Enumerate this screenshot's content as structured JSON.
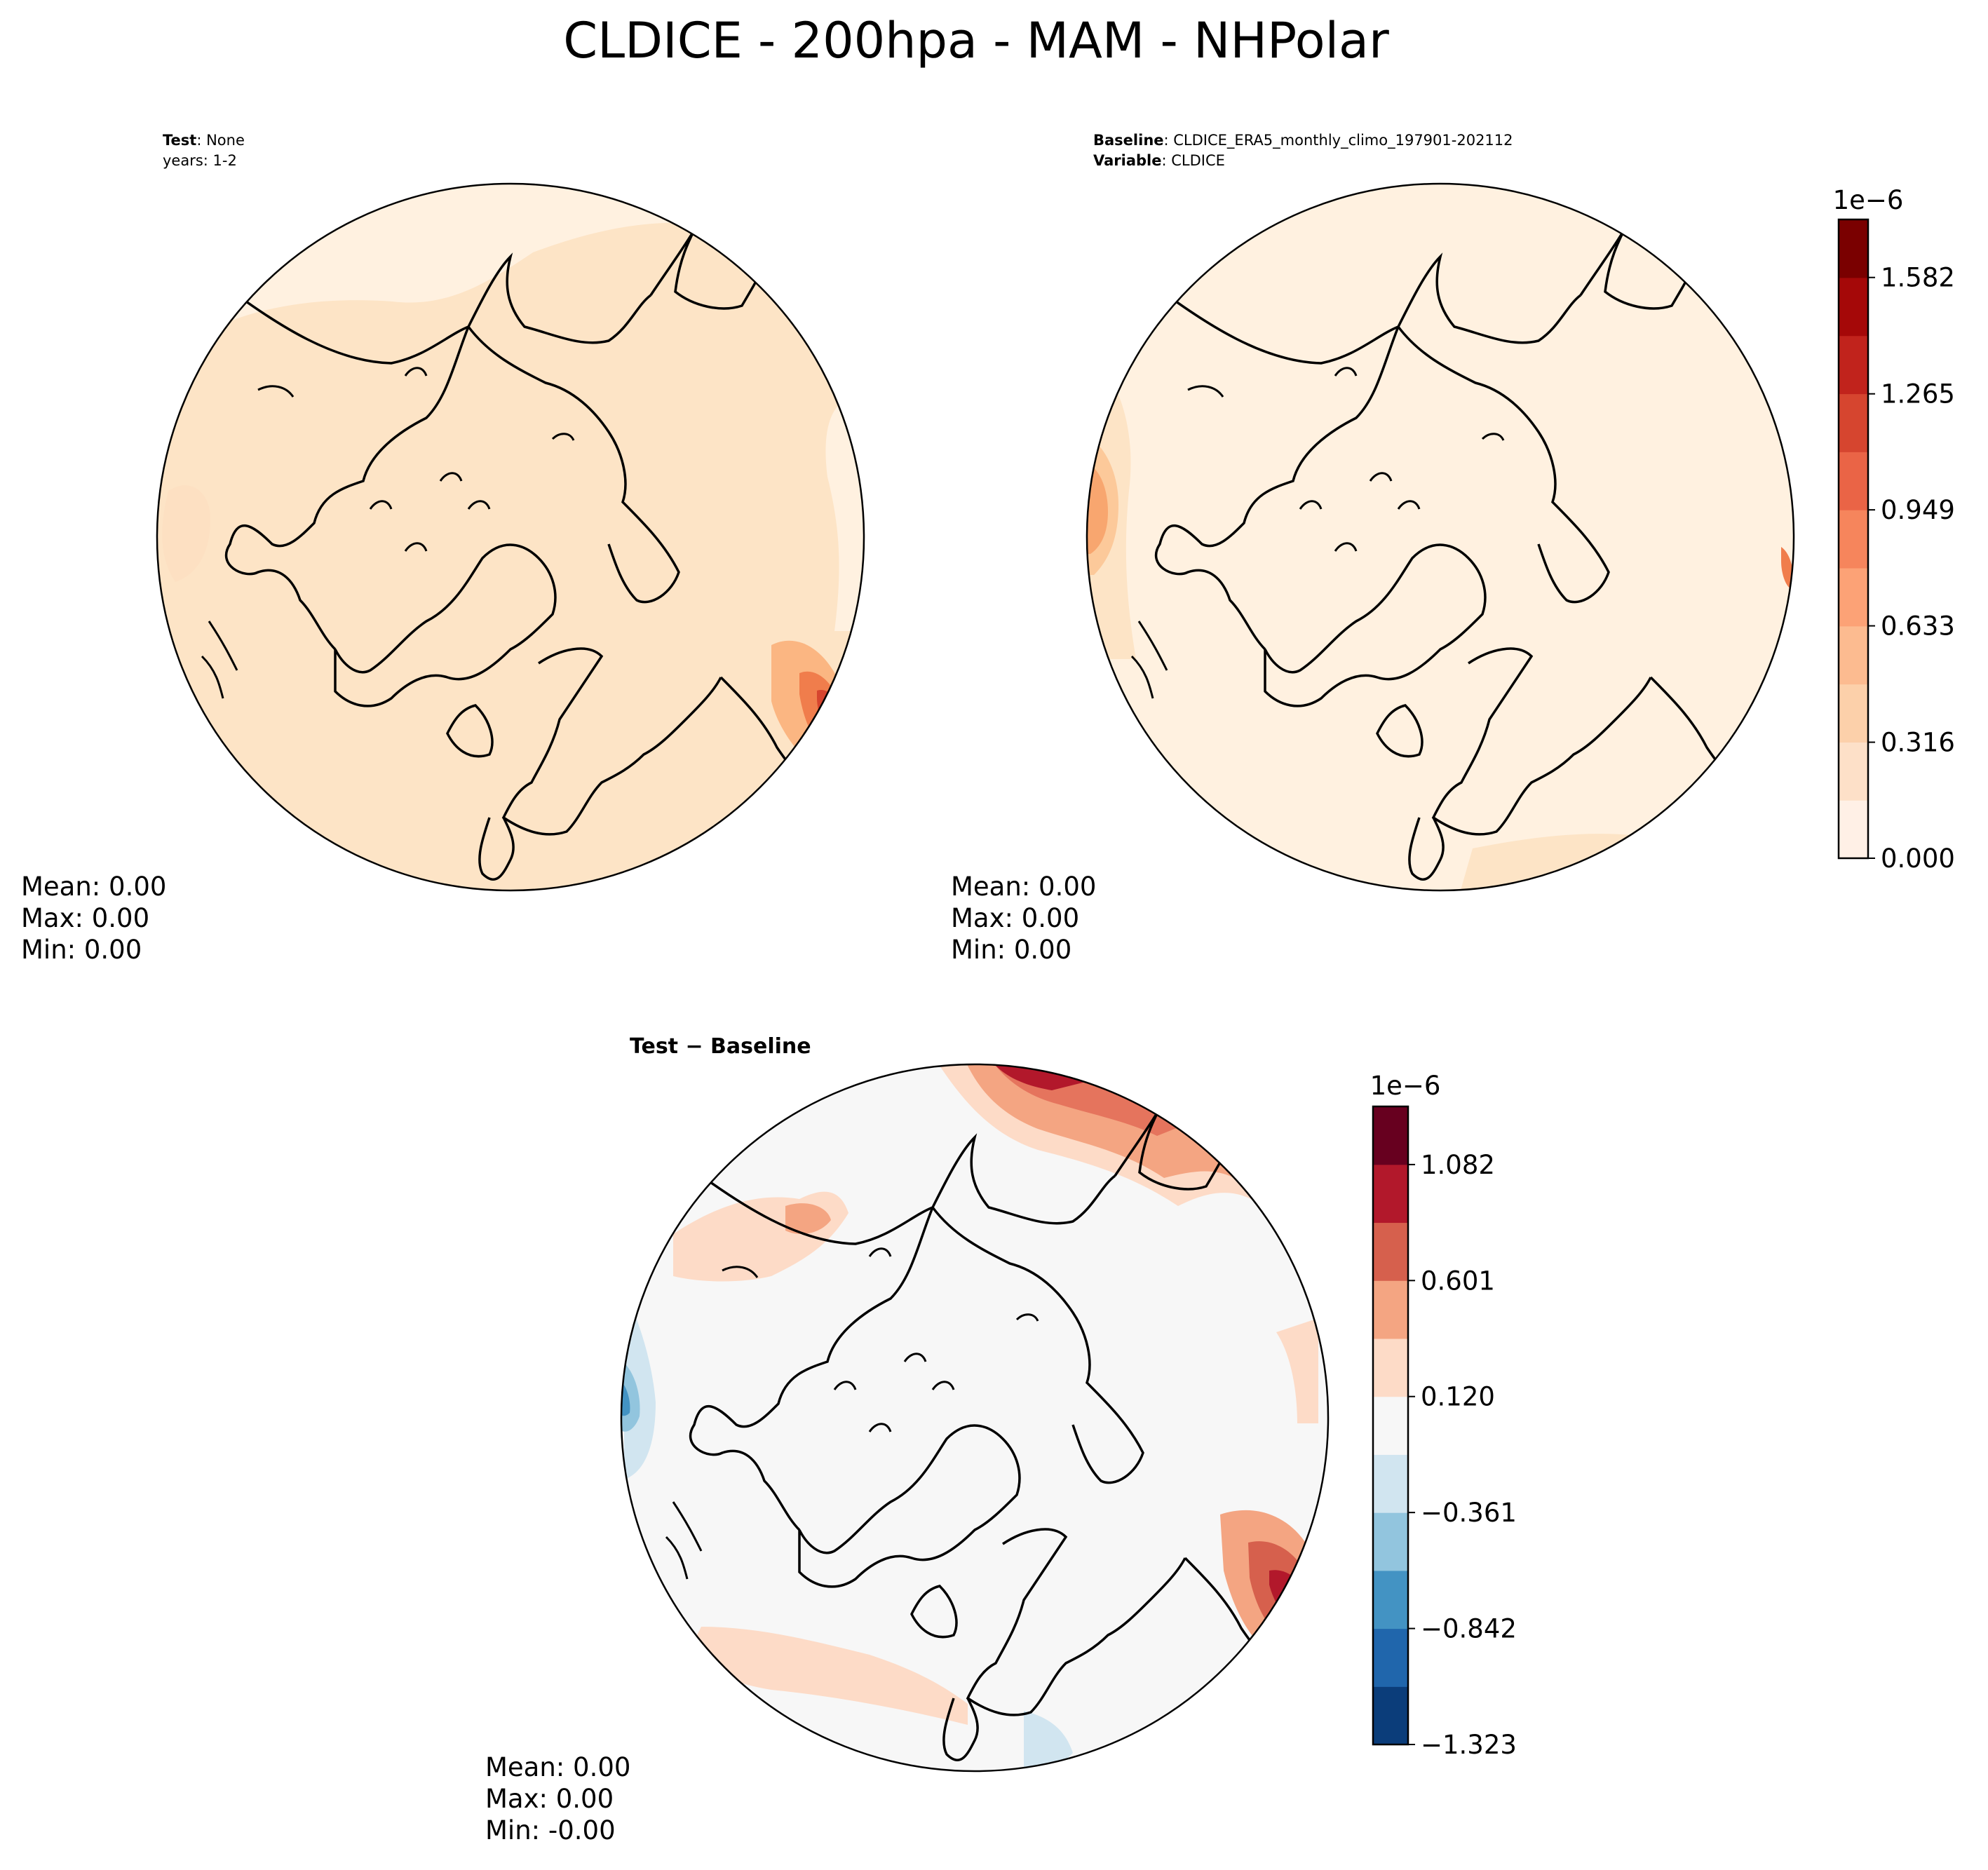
{
  "figure": {
    "title": "CLDICE - 200hpa - MAM - NHPolar"
  },
  "colors": {
    "seq": [
      "#fff5eb",
      "#fee6ce",
      "#fdd0a2",
      "#fdae6b",
      "#fd8d3c",
      "#f16913",
      "#e34a1f",
      "#d32a1c",
      "#b30000",
      "#7f0000"
    ],
    "seq_reds": [
      "#fff0e6",
      "#fde0c8",
      "#fcd0aa",
      "#fcbb90",
      "#fca276",
      "#f6855c",
      "#ea6446",
      "#d6452f",
      "#c1231c",
      "#a50808",
      "#7a0000"
    ],
    "div": [
      "#0b3d7a",
      "#2066ac",
      "#4393c3",
      "#92c5de",
      "#d1e5f0",
      "#f7f7f7",
      "#fddbc7",
      "#f4a582",
      "#d6604d",
      "#b2182b",
      "#67001f"
    ]
  },
  "chart_data": [
    {
      "type": "heatmap",
      "panel": "test",
      "projection": "north-polar-stereographic",
      "title_lines": [
        {
          "bold": "Test",
          "text": ": None"
        },
        {
          "bold": "",
          "text": "years: 1-2"
        }
      ],
      "stats": [
        "Mean:  0.00",
        "Max:  0.00",
        "Min:  0.00"
      ],
      "shared_colorbar": "baseline"
    },
    {
      "type": "heatmap",
      "panel": "baseline",
      "projection": "north-polar-stereographic",
      "title_lines": [
        {
          "bold": "Baseline",
          "text": ": CLDICE_ERA5_monthly_climo_197901-202112"
        },
        {
          "bold": "Variable",
          "text": ": CLDICE"
        }
      ],
      "stats": [
        "Mean:  0.00",
        "Max:  0.00",
        "Min:  0.00"
      ],
      "colorbar": {
        "scale_label": "1e−6",
        "vmin": 0.0,
        "vmax": 1.74,
        "ticks": [
          0.0,
          0.316,
          0.633,
          0.949,
          1.265,
          1.582
        ],
        "tick_labels": [
          "0.000",
          "0.316",
          "0.633",
          "0.949",
          "1.265",
          "1.582"
        ],
        "levels": 11
      }
    },
    {
      "type": "heatmap",
      "panel": "difference",
      "projection": "north-polar-stereographic",
      "title_lines": [
        {
          "bold": "Test − Baseline",
          "text": ""
        }
      ],
      "stats": [
        "Mean:  0.00",
        "Max:  0.00",
        "Min: -0.00"
      ],
      "colorbar": {
        "scale_label": "1e−6",
        "vmin": -1.323,
        "vmax": 1.323,
        "ticks": [
          -1.323,
          -0.842,
          -0.361,
          0.12,
          0.601,
          1.082
        ],
        "tick_labels": [
          "−1.323",
          "−0.842",
          "−0.361",
          "0.120",
          "0.601",
          "1.082"
        ],
        "levels": 11
      }
    }
  ]
}
